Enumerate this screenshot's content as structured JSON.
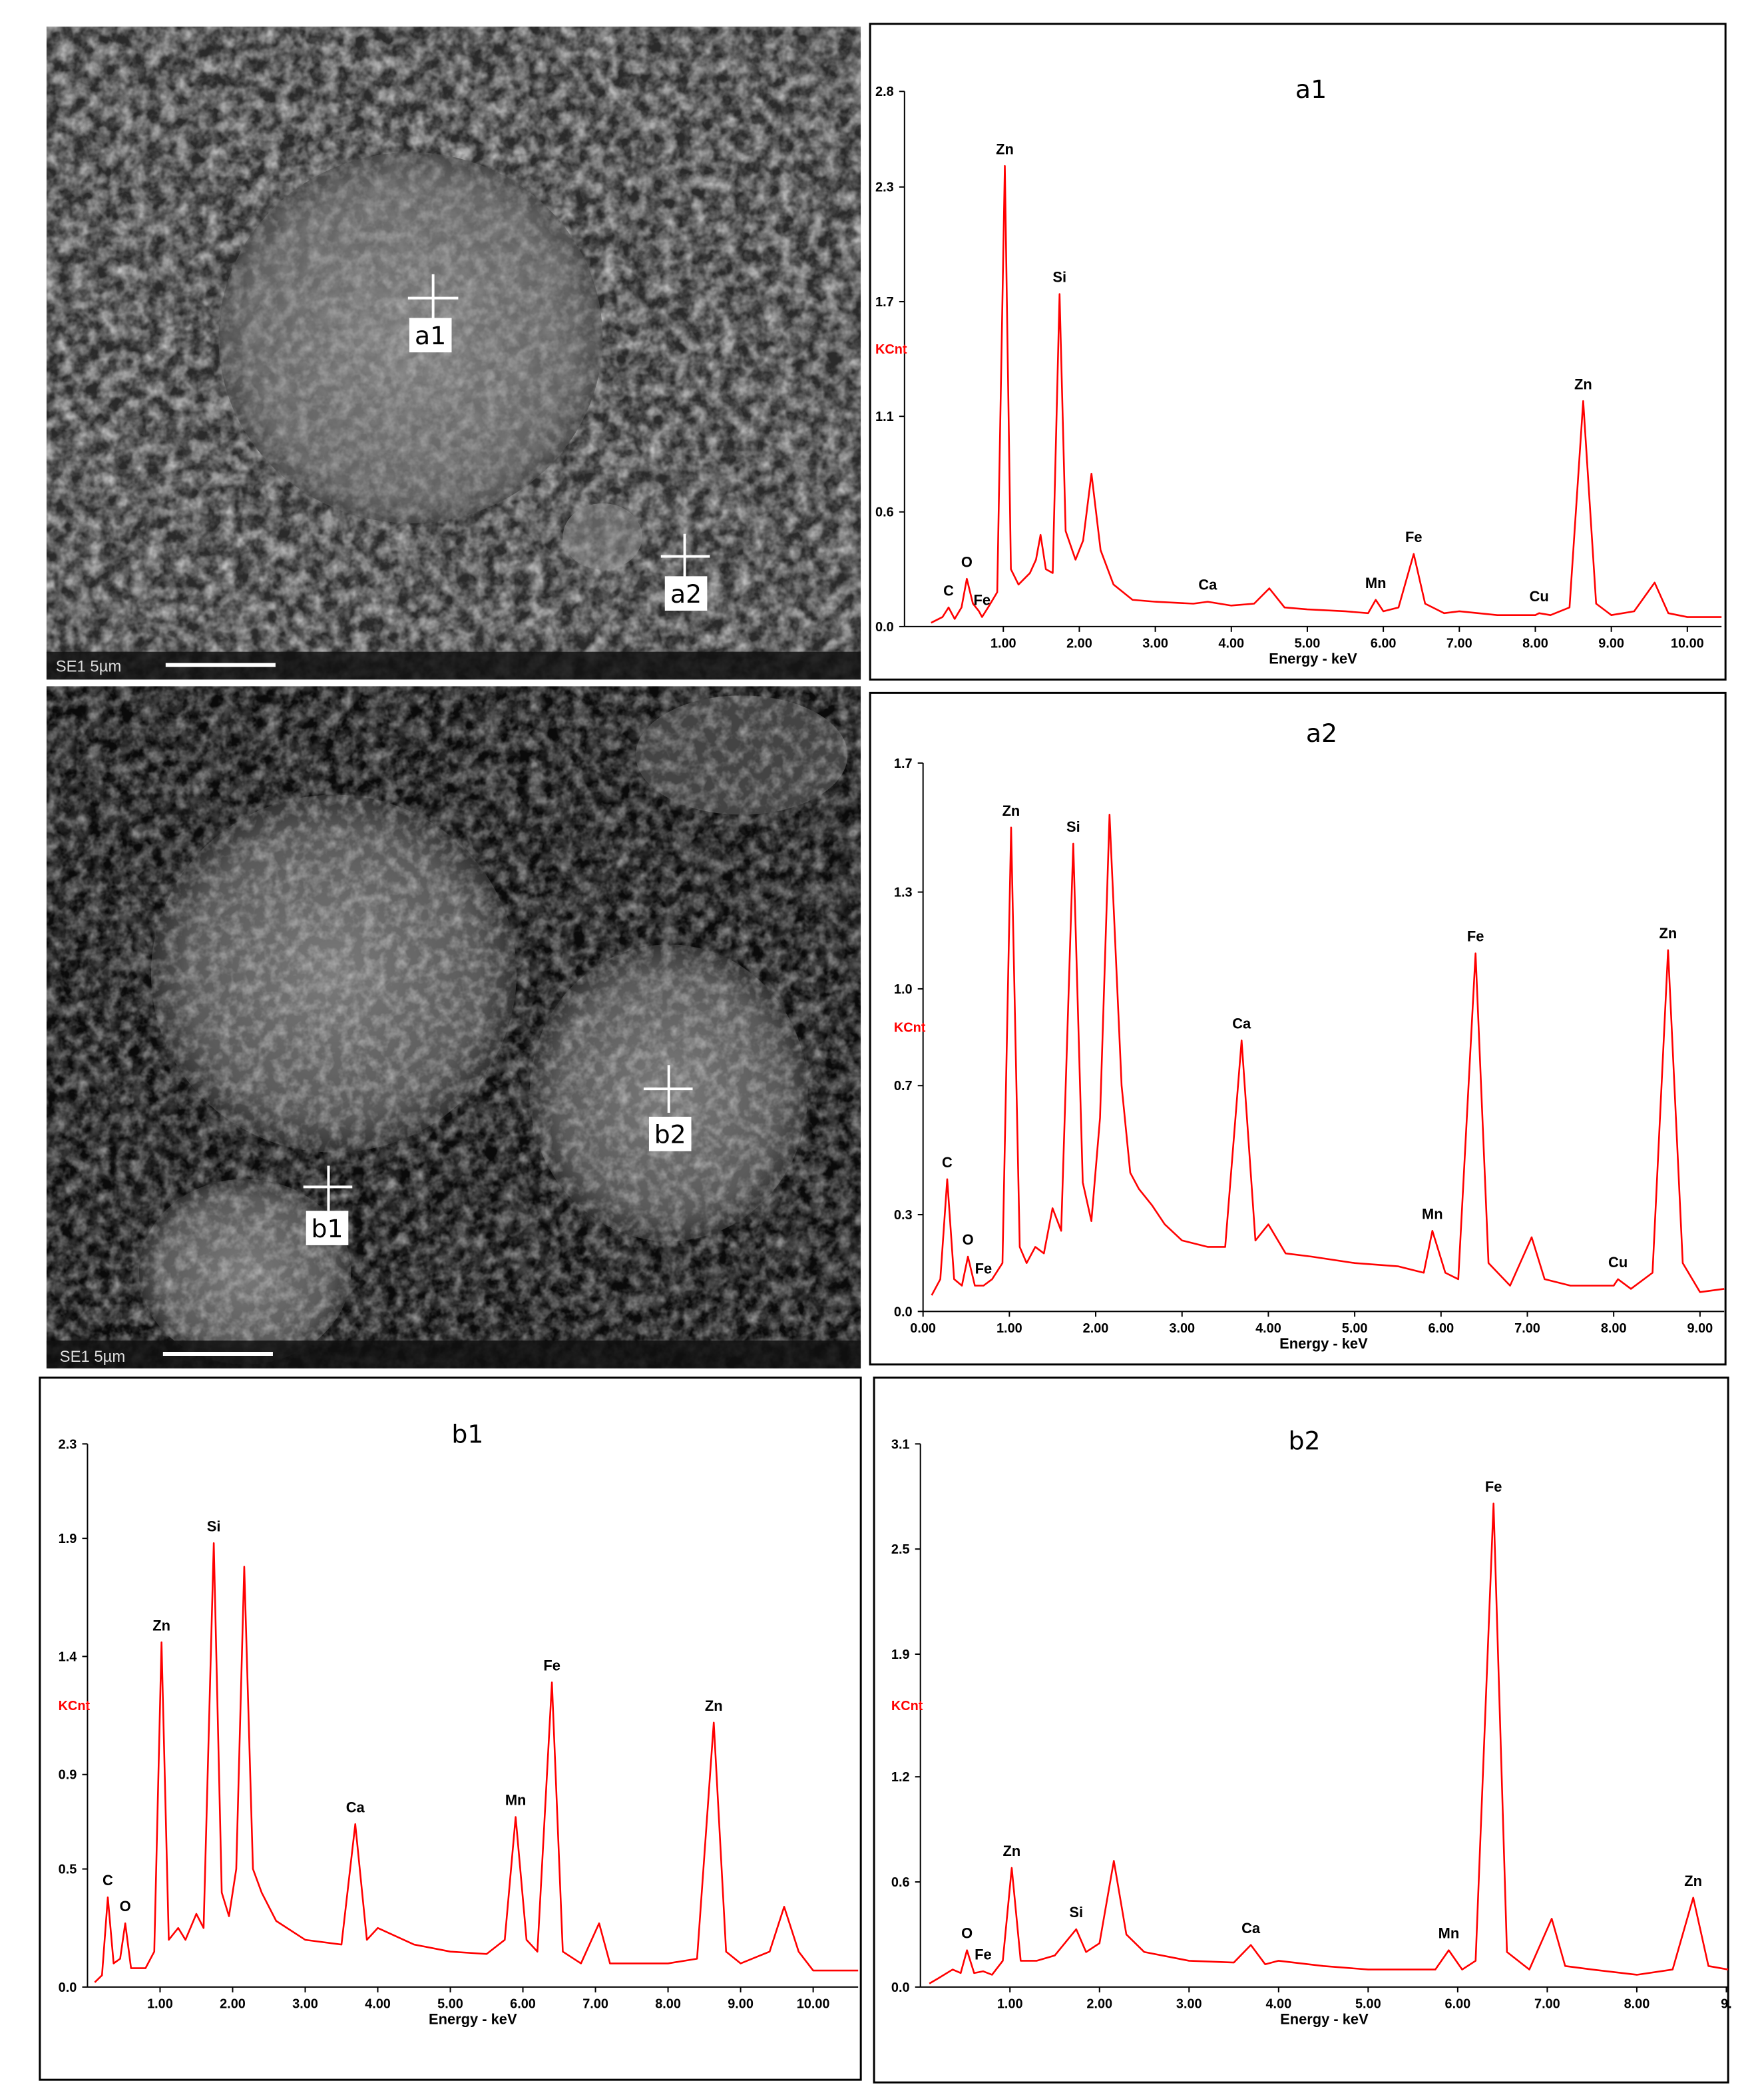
{
  "images": [
    {
      "scale_label": "SE1 5µm",
      "points": [
        "a1",
        "a2"
      ]
    },
    {
      "scale_label": "SE1 5µm",
      "points": [
        "b1",
        "b2"
      ]
    }
  ],
  "chart_data": [
    {
      "type": "line",
      "title": "a1",
      "xlabel": "Energy - keV",
      "ylabel": "KCnt",
      "color": "#ff0000",
      "xlim": [
        -0.3,
        10.45
      ],
      "ylim": [
        0,
        2.8
      ],
      "xticks": [
        {
          "value": 1,
          "label": "1.00"
        },
        {
          "value": 2,
          "label": "2.00"
        },
        {
          "value": 3,
          "label": "3.00"
        },
        {
          "value": 4,
          "label": "4.00"
        },
        {
          "value": 5,
          "label": "5.00"
        },
        {
          "value": 6,
          "label": "6.00"
        },
        {
          "value": 7,
          "label": "7.00"
        },
        {
          "value": 8,
          "label": "8.00"
        },
        {
          "value": 9,
          "label": "9.00"
        },
        {
          "value": 10,
          "label": "10.00"
        }
      ],
      "yticks": [
        {
          "value": 0,
          "label": "0.0"
        },
        0.6,
        1.1,
        1.7,
        2.3,
        2.8
      ],
      "x": [
        0.05,
        0.2,
        0.28,
        0.36,
        0.45,
        0.52,
        0.6,
        0.68,
        0.72,
        0.8,
        0.92,
        1.02,
        1.1,
        1.2,
        1.35,
        1.43,
        1.49,
        1.56,
        1.65,
        1.74,
        1.82,
        1.95,
        2.05,
        2.16,
        2.28,
        2.45,
        2.7,
        3.0,
        3.5,
        3.69,
        4.0,
        4.3,
        4.5,
        4.7,
        5.0,
        5.5,
        5.8,
        5.9,
        6.0,
        6.2,
        6.4,
        6.55,
        6.8,
        7.0,
        7.5,
        8.0,
        8.05,
        8.2,
        8.45,
        8.63,
        8.8,
        9.0,
        9.3,
        9.57,
        9.75,
        10.0,
        10.45
      ],
      "values": [
        0.02,
        0.05,
        0.1,
        0.04,
        0.1,
        0.25,
        0.12,
        0.08,
        0.05,
        0.1,
        0.18,
        2.41,
        0.3,
        0.22,
        0.28,
        0.35,
        0.48,
        0.3,
        0.28,
        1.74,
        0.5,
        0.35,
        0.45,
        0.8,
        0.4,
        0.22,
        0.14,
        0.13,
        0.12,
        0.13,
        0.11,
        0.12,
        0.2,
        0.1,
        0.09,
        0.08,
        0.07,
        0.14,
        0.08,
        0.1,
        0.38,
        0.12,
        0.07,
        0.08,
        0.06,
        0.06,
        0.07,
        0.06,
        0.1,
        1.18,
        0.12,
        0.06,
        0.08,
        0.23,
        0.07,
        0.05,
        0.05
      ],
      "annotations": [
        {
          "text": "C",
          "x": 0.28,
          "y": 0.1
        },
        {
          "text": "O",
          "x": 0.52,
          "y": 0.25
        },
        {
          "text": "Fe",
          "x": 0.72,
          "y": 0.05
        },
        {
          "text": "Zn",
          "x": 1.02,
          "y": 2.41
        },
        {
          "text": "Si",
          "x": 1.74,
          "y": 1.74
        },
        {
          "text": "Ca",
          "x": 3.69,
          "y": 0.13
        },
        {
          "text": "Mn",
          "x": 5.9,
          "y": 0.14
        },
        {
          "text": "Fe",
          "x": 6.4,
          "y": 0.38
        },
        {
          "text": "Cu",
          "x": 8.05,
          "y": 0.07
        },
        {
          "text": "Zn",
          "x": 8.63,
          "y": 1.18
        }
      ]
    },
    {
      "type": "line",
      "title": "a2",
      "xlabel": "Energy - keV",
      "ylabel": "KCnt",
      "color": "#ff0000",
      "xlim": [
        0,
        9.28
      ],
      "ylim": [
        0,
        1.7
      ],
      "xticks": [
        {
          "value": 0,
          "label": "0.00"
        },
        {
          "value": 1,
          "label": "1.00"
        },
        {
          "value": 2,
          "label": "2.00"
        },
        {
          "value": 3,
          "label": "3.00"
        },
        {
          "value": 4,
          "label": "4.00"
        },
        {
          "value": 5,
          "label": "5.00"
        },
        {
          "value": 6,
          "label": "6.00"
        },
        {
          "value": 7,
          "label": "7.00"
        },
        {
          "value": 8,
          "label": "8.00"
        },
        {
          "value": 9,
          "label": "9.00"
        }
      ],
      "yticks": [
        {
          "value": 0,
          "label": "0.0"
        },
        0.3,
        0.7,
        {
          "value": 1,
          "label": "1.0"
        },
        1.3,
        1.7
      ],
      "x": [
        0.1,
        0.2,
        0.28,
        0.36,
        0.45,
        0.52,
        0.6,
        0.7,
        0.8,
        0.92,
        1.02,
        1.12,
        1.2,
        1.3,
        1.4,
        1.5,
        1.6,
        1.74,
        1.85,
        1.95,
        2.05,
        2.16,
        2.3,
        2.4,
        2.5,
        2.65,
        2.8,
        3.0,
        3.3,
        3.5,
        3.69,
        3.85,
        4.0,
        4.2,
        4.5,
        5.0,
        5.5,
        5.8,
        5.9,
        6.05,
        6.2,
        6.4,
        6.55,
        6.8,
        7.05,
        7.2,
        7.5,
        8.0,
        8.05,
        8.2,
        8.45,
        8.63,
        8.8,
        9.0,
        9.28
      ],
      "values": [
        0.05,
        0.1,
        0.41,
        0.1,
        0.08,
        0.17,
        0.08,
        0.08,
        0.1,
        0.15,
        1.5,
        0.2,
        0.15,
        0.2,
        0.18,
        0.32,
        0.25,
        1.45,
        0.4,
        0.28,
        0.6,
        1.54,
        0.7,
        0.43,
        0.38,
        0.33,
        0.27,
        0.22,
        0.2,
        0.2,
        0.84,
        0.22,
        0.27,
        0.18,
        0.17,
        0.15,
        0.14,
        0.12,
        0.25,
        0.12,
        0.1,
        1.11,
        0.15,
        0.08,
        0.23,
        0.1,
        0.08,
        0.08,
        0.1,
        0.07,
        0.12,
        1.12,
        0.15,
        0.06,
        0.07
      ],
      "annotations": [
        {
          "text": "C",
          "x": 0.28,
          "y": 0.41
        },
        {
          "text": "O",
          "x": 0.52,
          "y": 0.17
        },
        {
          "text": "Fe",
          "x": 0.7,
          "y": 0.08
        },
        {
          "text": "Zn",
          "x": 1.02,
          "y": 1.5
        },
        {
          "text": "Si",
          "x": 1.74,
          "y": 1.45
        },
        {
          "text": "Ca",
          "x": 3.69,
          "y": 0.84
        },
        {
          "text": "Mn",
          "x": 5.9,
          "y": 0.25
        },
        {
          "text": "Fe",
          "x": 6.4,
          "y": 1.11
        },
        {
          "text": "Cu",
          "x": 8.05,
          "y": 0.1
        },
        {
          "text": "Zn",
          "x": 8.63,
          "y": 1.12
        }
      ]
    },
    {
      "type": "line",
      "title": "b1",
      "xlabel": "Energy - keV",
      "ylabel": "KCnt",
      "color": "#ff0000",
      "xlim": [
        0,
        10.62
      ],
      "ylim": [
        0,
        2.3
      ],
      "xticks": [
        {
          "value": 1,
          "label": "1.00"
        },
        {
          "value": 2,
          "label": "2.00"
        },
        {
          "value": 3,
          "label": "3.00"
        },
        {
          "value": 4,
          "label": "4.00"
        },
        {
          "value": 5,
          "label": "5.00"
        },
        {
          "value": 6,
          "label": "6.00"
        },
        {
          "value": 7,
          "label": "7.00"
        },
        {
          "value": 8,
          "label": "8.00"
        },
        {
          "value": 9,
          "label": "9.00"
        },
        {
          "value": 10,
          "label": "10.00"
        }
      ],
      "yticks": [
        {
          "value": 0,
          "label": "0.0"
        },
        0.5,
        0.9,
        1.4,
        1.9,
        2.3
      ],
      "x": [
        0.1,
        0.2,
        0.28,
        0.36,
        0.45,
        0.52,
        0.6,
        0.8,
        0.92,
        1.02,
        1.12,
        1.25,
        1.35,
        1.5,
        1.6,
        1.74,
        1.85,
        1.95,
        2.05,
        2.16,
        2.28,
        2.4,
        2.6,
        3.0,
        3.5,
        3.69,
        3.85,
        4.0,
        4.5,
        5.0,
        5.5,
        5.75,
        5.9,
        6.05,
        6.2,
        6.4,
        6.55,
        6.8,
        7.05,
        7.2,
        7.5,
        8.0,
        8.4,
        8.63,
        8.8,
        9.0,
        9.4,
        9.6,
        9.8,
        10.0,
        10.62
      ],
      "values": [
        0.02,
        0.05,
        0.38,
        0.1,
        0.12,
        0.27,
        0.08,
        0.08,
        0.15,
        1.46,
        0.2,
        0.25,
        0.2,
        0.31,
        0.25,
        1.88,
        0.4,
        0.3,
        0.5,
        1.78,
        0.5,
        0.4,
        0.28,
        0.2,
        0.18,
        0.69,
        0.2,
        0.25,
        0.18,
        0.15,
        0.14,
        0.2,
        0.72,
        0.2,
        0.15,
        1.29,
        0.15,
        0.1,
        0.27,
        0.1,
        0.1,
        0.1,
        0.12,
        1.12,
        0.15,
        0.1,
        0.15,
        0.34,
        0.15,
        0.07,
        0.07
      ],
      "annotations": [
        {
          "text": "C",
          "x": 0.28,
          "y": 0.38
        },
        {
          "text": "O",
          "x": 0.52,
          "y": 0.27
        },
        {
          "text": "Zn",
          "x": 1.02,
          "y": 1.46
        },
        {
          "text": "Si",
          "x": 1.74,
          "y": 1.88
        },
        {
          "text": "Ca",
          "x": 3.69,
          "y": 0.69
        },
        {
          "text": "Mn",
          "x": 5.9,
          "y": 0.72
        },
        {
          "text": "Fe",
          "x": 6.4,
          "y": 1.29
        },
        {
          "text": "Zn",
          "x": 8.63,
          "y": 1.12
        }
      ]
    },
    {
      "type": "line",
      "title": "b2",
      "xlabel": "Energy - keV",
      "ylabel": "KCnt",
      "color": "#ff0000",
      "xlim": [
        0,
        9.02
      ],
      "ylim": [
        0,
        3.1
      ],
      "xticks": [
        {
          "value": 1,
          "label": "1.00"
        },
        {
          "value": 2,
          "label": "2.00"
        },
        {
          "value": 3,
          "label": "3.00"
        },
        {
          "value": 4,
          "label": "4.00"
        },
        {
          "value": 5,
          "label": "5.00"
        },
        {
          "value": 6,
          "label": "6.00"
        },
        {
          "value": 7,
          "label": "7.00"
        },
        {
          "value": 8,
          "label": "8.00"
        },
        {
          "value": 9,
          "label": "9."
        }
      ],
      "yticks": [
        {
          "value": 0,
          "label": "0.0"
        },
        0.6,
        1.2,
        1.9,
        2.5,
        3.1
      ],
      "x": [
        0.1,
        0.2,
        0.36,
        0.45,
        0.52,
        0.6,
        0.7,
        0.8,
        0.92,
        1.02,
        1.12,
        1.3,
        1.5,
        1.74,
        1.85,
        2.0,
        2.16,
        2.3,
        2.5,
        3.0,
        3.5,
        3.69,
        3.85,
        4.0,
        4.5,
        5.0,
        5.5,
        5.75,
        5.9,
        6.05,
        6.2,
        6.4,
        6.55,
        6.8,
        7.05,
        7.2,
        7.5,
        8.0,
        8.4,
        8.63,
        8.8,
        9.02
      ],
      "values": [
        0.02,
        0.05,
        0.1,
        0.08,
        0.21,
        0.08,
        0.09,
        0.07,
        0.15,
        0.68,
        0.15,
        0.15,
        0.18,
        0.33,
        0.2,
        0.25,
        0.72,
        0.3,
        0.2,
        0.15,
        0.14,
        0.24,
        0.13,
        0.15,
        0.12,
        0.1,
        0.1,
        0.1,
        0.21,
        0.1,
        0.15,
        2.76,
        0.2,
        0.1,
        0.39,
        0.12,
        0.1,
        0.07,
        0.1,
        0.51,
        0.12,
        0.1
      ],
      "annotations": [
        {
          "text": "O",
          "x": 0.52,
          "y": 0.21
        },
        {
          "text": "Fe",
          "x": 0.7,
          "y": 0.09
        },
        {
          "text": "Zn",
          "x": 1.02,
          "y": 0.68
        },
        {
          "text": "Si",
          "x": 1.74,
          "y": 0.33
        },
        {
          "text": "Ca",
          "x": 3.69,
          "y": 0.24
        },
        {
          "text": "Mn",
          "x": 5.9,
          "y": 0.21
        },
        {
          "text": "Fe",
          "x": 6.4,
          "y": 2.76
        },
        {
          "text": "Zn",
          "x": 8.63,
          "y": 0.51
        }
      ]
    }
  ]
}
